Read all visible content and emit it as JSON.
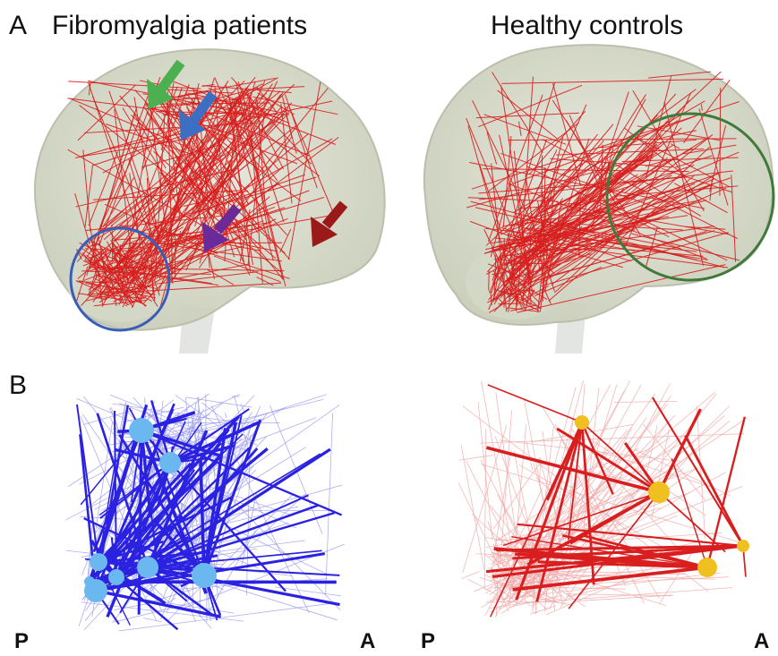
{
  "panel_a": {
    "label": "A",
    "left_title": "Fibromyalgia patients",
    "right_title": "Healthy controls"
  },
  "panel_b": {
    "label": "B",
    "left": {
      "posterior": "P",
      "anterior": "A"
    },
    "right": {
      "posterior": "P",
      "anterior": "A"
    }
  }
}
